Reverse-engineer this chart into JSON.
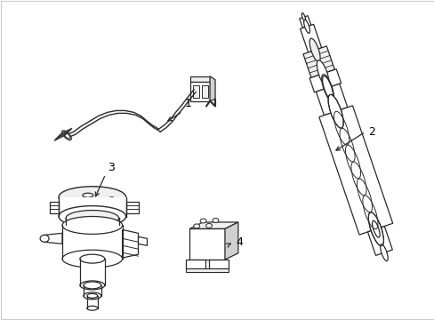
{
  "bg_color": "#ffffff",
  "line_color": "#2a2a2a",
  "label_color": "#000000",
  "fig_width": 4.89,
  "fig_height": 3.6,
  "dpi": 100,
  "border_color": "#cccccc",
  "gray_fill": "#e8e8e8",
  "light_gray": "#f0f0f0"
}
